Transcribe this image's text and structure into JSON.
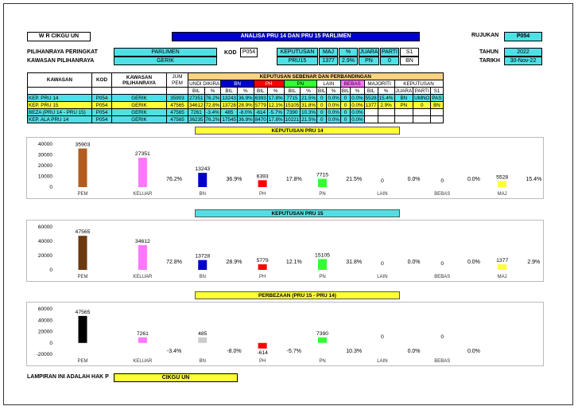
{
  "header": {
    "author_label": "W R CIKGU UN",
    "title": "ANALISA PRU 14 DAN PRU 15 PARLIMEN",
    "rujukan_label": "RUJUKAN",
    "rujukan_value": "P054",
    "pilihanraya_label": "PILIHANRAYA PERINGKAT",
    "pilihanraya_value": "PARLIMEN",
    "kawasan_label": "KAWASAN PILIHANRAYA",
    "kawasan_value": "GERIK",
    "kod_label": "KOD",
    "kod_value": "P054",
    "keputusan_label": "KEPUTUSAN",
    "keputusan_sub": "PRU15",
    "maj_label": "MAJ",
    "maj_value": "1377",
    "pct_label": "%",
    "pct_value": "2.9%",
    "juara_label": "JUARA",
    "juara_value": "PN",
    "parti_label": "PARTI",
    "parti_value": "0",
    "s1_label": "S1",
    "s1_value": "BN",
    "tahun_label": "TAHUN",
    "tahun_value": "2022",
    "tarikh_label": "TARIKH",
    "tarikh_value": "30-Nov-22"
  },
  "table": {
    "group_header": "KEPUTUSAN SEBENAR DAN PERBANDINGAN",
    "col_kawasan": "KAWASAN",
    "col_kod": "KOD",
    "col_kawasan_pil": "KAWASAN PILIHANRAYA",
    "col_jum": "JUM",
    "col_pem": "PEM",
    "col_undi": "UNDI DIKIRA",
    "col_bn": "BN",
    "col_ph": "PH",
    "col_pn": "PN",
    "col_lain": "LAIN",
    "col_bebas": "BEBAS",
    "col_majoriti": "MAJORITI",
    "col_keputusan": "KEPUTUSAN",
    "sub_bil": "BIL",
    "sub_pct": "%",
    "sub_juara": "JUARA",
    "sub_parti": "PARTI",
    "sub_s1": "S1",
    "rows": [
      {
        "name": "KEP. PRU 14",
        "kod": "P054",
        "kaw": "GERIK",
        "jum": "35903",
        "undi": "27351",
        "undi_p": "76.2%",
        "bn": "13243",
        "bn_p": "36.9%",
        "ph": "6393",
        "ph_p": "17.8%",
        "pn": "7715",
        "pn_p": "21.5%",
        "lain": "0",
        "lain_p": "0.0%",
        "bebas": "0",
        "bebas_p": "0.0%",
        "maj": "5528",
        "maj_p": "15.4%",
        "juara": "BN",
        "parti": "UMNO",
        "s1": "PAS"
      },
      {
        "name": "KEP. PRU 15",
        "kod": "P054",
        "kaw": "GERIK",
        "jum": "47565",
        "undi": "34612",
        "undi_p": "72.8%",
        "bn": "13728",
        "bn_p": "28.9%",
        "ph": "5779",
        "ph_p": "12.1%",
        "pn": "15105",
        "pn_p": "31.8%",
        "lain": "0",
        "lain_p": "0.0%",
        "bebas": "0",
        "bebas_p": "0.0%",
        "maj": "1377",
        "maj_p": "2.9%",
        "juara": "PN",
        "parti": "0",
        "s1": "BN"
      },
      {
        "name": "BEZA (PRU 14 - PRU 15)",
        "kod": "P054",
        "kaw": "GERIK",
        "jum": "47565",
        "undi": "7261",
        "undi_p": "-3.4%",
        "bn": "485",
        "bn_p": "-8.0%",
        "ph": "-614",
        "ph_p": "-5.7%",
        "pn": "7390",
        "pn_p": "10.3%",
        "lain": "0",
        "lain_p": "0.0%",
        "bebas": "0",
        "bebas_p": "0.0%"
      },
      {
        "name": "KEP. ALA PRU 14",
        "kod": "P054",
        "kaw": "GERIK",
        "jum": "47565",
        "undi": "36235",
        "undi_p": "76.2%",
        "bn": "17545",
        "bn_p": "36.9%",
        "ph": "8470",
        "ph_p": "17.8%",
        "pn": "10221",
        "pn_p": "21.5%",
        "lain": "0",
        "lain_p": "0.0%",
        "bebas": "0",
        "bebas_p": "0.0%"
      }
    ]
  },
  "footer": {
    "note": "LAMPIRAN INI ADALAH HAK P",
    "owner": "CIKGU UN"
  },
  "colors": {
    "pem": "#b35c1e",
    "keluar": "#ff77ff",
    "bn": "#0000cc",
    "ph": "#ff0000",
    "pn": "#33ff33",
    "maj": "#ffff33",
    "pem15": "#6b3a12",
    "pem_diff": "#000000"
  },
  "chart_data": [
    {
      "type": "bar",
      "title": "KEPUTUSAN PRU 14",
      "categories": [
        "PEM",
        "KELUAR",
        "BN",
        "PH",
        "PN",
        "LAIN",
        "BEBAS",
        "MAJ"
      ],
      "values": [
        35903,
        27351,
        13243,
        6393,
        7715,
        0,
        0,
        5528
      ],
      "value_labels": [
        "35903",
        "27351",
        "13243",
        "6393",
        "7715",
        "0",
        "0",
        "5528"
      ],
      "pct_labels": [
        "",
        "76.2%",
        "36.9%",
        "17.8%",
        "21.5%",
        "0.0%",
        "0.0%",
        "15.4%"
      ],
      "yticks": [
        "40000",
        "30000",
        "20000",
        "10000",
        "0"
      ],
      "ylim": [
        0,
        40000
      ]
    },
    {
      "type": "bar",
      "title": "KEPUTUSAN PRU 15",
      "categories": [
        "PEM",
        "KELUAR",
        "BN",
        "PH",
        "PN",
        "LAIN",
        "BEBAS",
        "MAJ"
      ],
      "values": [
        47565,
        34612,
        13728,
        5779,
        15105,
        0,
        0,
        1377
      ],
      "value_labels": [
        "47565",
        "34612",
        "13728",
        "5779",
        "15105",
        "0",
        "0",
        "1377"
      ],
      "pct_labels": [
        "",
        "72.8%",
        "28.9%",
        "12.1%",
        "31.8%",
        "0.0%",
        "0.0%",
        "2.9%"
      ],
      "yticks": [
        "60000",
        "40000",
        "20000",
        "0"
      ],
      "ylim": [
        0,
        60000
      ]
    },
    {
      "type": "bar",
      "title": "PERBEZAAN (PRU 15 - PRU 14)",
      "categories": [
        "PEM",
        "KELUAR",
        "BN",
        "PH",
        "PN",
        "LAIN",
        "BEBAS"
      ],
      "values": [
        47565,
        7261,
        485,
        -614,
        7390,
        0,
        0
      ],
      "value_labels": [
        "47565",
        "7261",
        "485",
        "-614",
        "7390",
        "0",
        "0"
      ],
      "pct_labels": [
        "",
        "-3.4%",
        "-8.0%",
        "-5.7%",
        "10.3%",
        "0.0%",
        "0.0%"
      ],
      "yticks": [
        "60000",
        "40000",
        "20000",
        "0",
        "-20000"
      ],
      "ylim": [
        -20000,
        60000
      ]
    }
  ]
}
